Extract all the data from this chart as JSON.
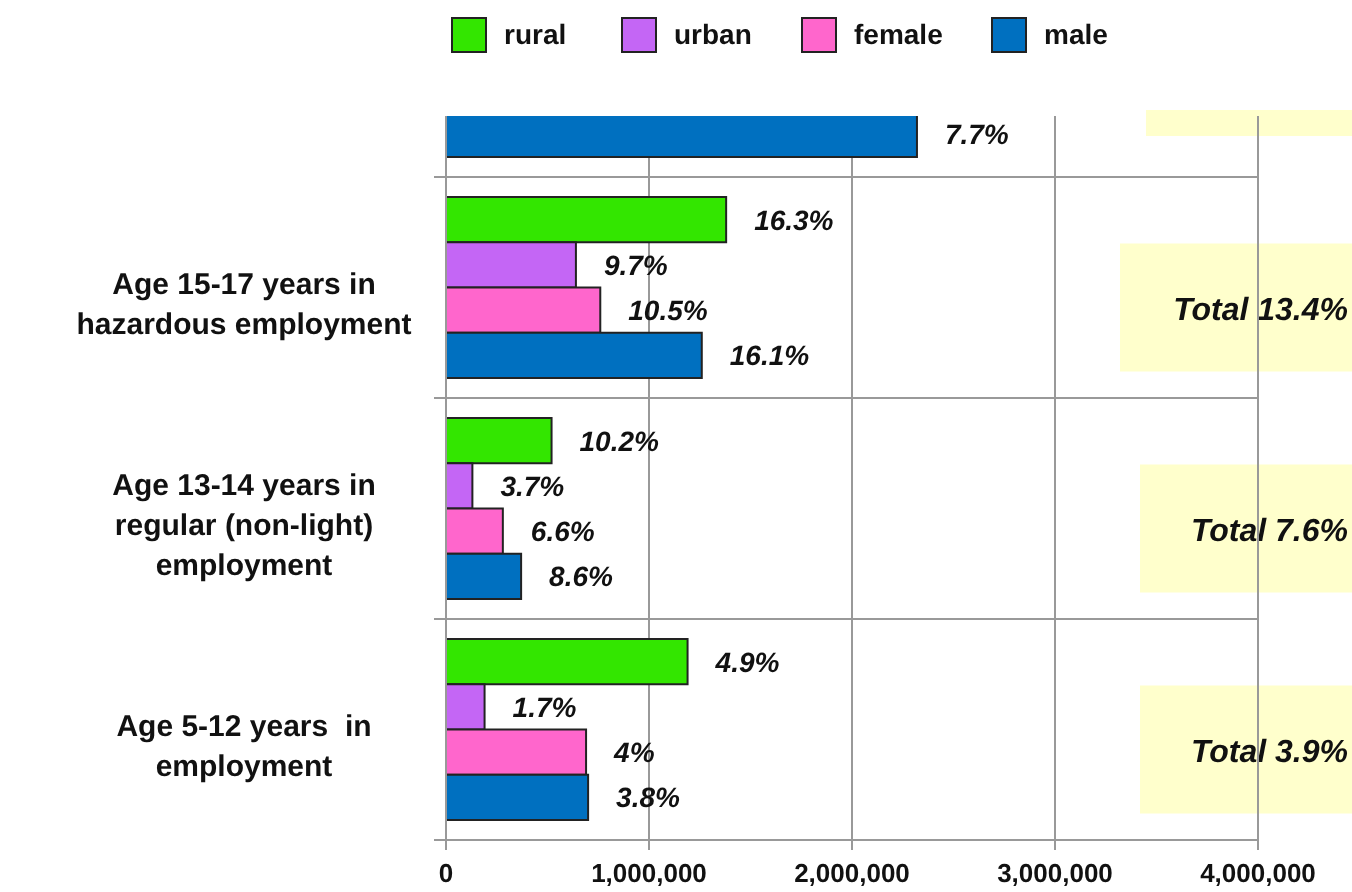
{
  "chart_data": {
    "type": "bar",
    "orientation": "horizontal",
    "categories": [
      null,
      "Age 15-17 years in hazardous employment",
      "Age 13-14 years in regular (non-light) employment",
      "Age 5-12 years  in employment"
    ],
    "series": [
      {
        "name": "rural",
        "color": "#33e600",
        "values": [
          null,
          1380000,
          520000,
          1190000
        ]
      },
      {
        "name": "urban",
        "color": "#c466f5",
        "values": [
          null,
          640000,
          130000,
          190000
        ]
      },
      {
        "name": "female",
        "color": "#ff66cc",
        "values": [
          null,
          760000,
          280000,
          690000
        ]
      },
      {
        "name": "male",
        "color": "#0070c0",
        "values": [
          2320000,
          1260000,
          370000,
          700000
        ]
      }
    ],
    "xlim": [
      0,
      4000000
    ],
    "xticks": [
      {
        "value": 0,
        "label": "0"
      },
      {
        "value": 1000000,
        "label": "1,000,000"
      },
      {
        "value": 2000000,
        "label": "2,000,000"
      },
      {
        "value": 3000000,
        "label": "3,000,000"
      },
      {
        "value": 4000000,
        "label": "4,000,000"
      }
    ],
    "grid": "x",
    "legend": "top",
    "annotations": [
      "7.7%",
      "16.3%",
      "9.7%",
      "10.5%",
      "16.1%",
      "10.2%",
      "3.7%",
      "6.6%",
      "8.6%",
      "4.9%",
      "1.7%",
      "4%",
      "3.8%",
      "Total 13.4%",
      "Total 7.6%",
      "Total  3.9%"
    ]
  }
}
